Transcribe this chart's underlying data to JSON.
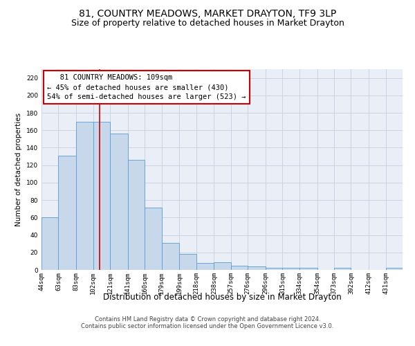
{
  "title": "81, COUNTRY MEADOWS, MARKET DRAYTON, TF9 3LP",
  "subtitle": "Size of property relative to detached houses in Market Drayton",
  "xlabel": "Distribution of detached houses by size in Market Drayton",
  "ylabel": "Number of detached properties",
  "bar_color": "#c8d8eb",
  "bar_edge_color": "#5b9bd5",
  "grid_color": "#c8d4e4",
  "background_color": "#eaeff7",
  "annotation_box_color": "#ffffff",
  "annotation_box_edge": "#cc0000",
  "vline_color": "#cc0000",
  "footer_line1": "Contains HM Land Registry data © Crown copyright and database right 2024.",
  "footer_line2": "Contains public sector information licensed under the Open Government Licence v3.0.",
  "annotation_line1": "   81 COUNTRY MEADOWS: 109sqm",
  "annotation_line2": "← 45% of detached houses are smaller (430)",
  "annotation_line3": "54% of semi-detached houses are larger (523) →",
  "property_sqm": 109,
  "categories": [
    "44sqm",
    "63sqm",
    "83sqm",
    "102sqm",
    "121sqm",
    "141sqm",
    "160sqm",
    "179sqm",
    "199sqm",
    "218sqm",
    "238sqm",
    "257sqm",
    "276sqm",
    "296sqm",
    "315sqm",
    "334sqm",
    "354sqm",
    "373sqm",
    "392sqm",
    "412sqm",
    "431sqm"
  ],
  "bin_edges": [
    44,
    63,
    83,
    102,
    121,
    141,
    160,
    179,
    199,
    218,
    238,
    257,
    276,
    296,
    315,
    334,
    354,
    373,
    392,
    412,
    431,
    450
  ],
  "values": [
    60,
    131,
    170,
    170,
    156,
    126,
    71,
    31,
    18,
    8,
    9,
    5,
    4,
    2,
    2,
    2,
    0,
    2,
    0,
    0,
    2
  ],
  "ylim": [
    0,
    230
  ],
  "yticks": [
    0,
    20,
    40,
    60,
    80,
    100,
    120,
    140,
    160,
    180,
    200,
    220
  ],
  "title_fontsize": 10,
  "subtitle_fontsize": 9,
  "xlabel_fontsize": 8.5,
  "ylabel_fontsize": 7.5,
  "tick_fontsize": 6.5,
  "annotation_fontsize": 7.5,
  "footer_fontsize": 6
}
